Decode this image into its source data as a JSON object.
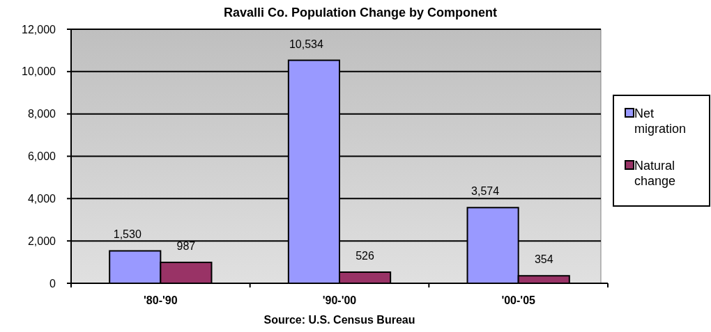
{
  "chart_data": {
    "type": "bar",
    "title": "Ravalli Co. Population Change by Component",
    "categories": [
      "'80-'90",
      "'90-'00",
      "'00-'05"
    ],
    "series": [
      {
        "name": "Net migration",
        "color": "#9999ff",
        "values": [
          1530,
          10534,
          3574
        ],
        "value_labels": [
          "1,530",
          "10,534",
          "3,574"
        ]
      },
      {
        "name": "Natural change",
        "color": "#993366",
        "values": [
          987,
          526,
          354
        ],
        "value_labels": [
          "987",
          "526",
          "354"
        ]
      }
    ],
    "ylim": [
      0,
      12000
    ],
    "yticks": [
      {
        "value": 0,
        "label": "0"
      },
      {
        "value": 2000,
        "label": "2,000"
      },
      {
        "value": 4000,
        "label": "4,000"
      },
      {
        "value": 6000,
        "label": "6,000"
      },
      {
        "value": 8000,
        "label": "8,000"
      },
      {
        "value": 10000,
        "label": "10,000"
      },
      {
        "value": 12000,
        "label": "12,000"
      }
    ],
    "grid": "y",
    "legend": "right",
    "annotations": [
      "Source: U.S. Census Bureau"
    ]
  }
}
